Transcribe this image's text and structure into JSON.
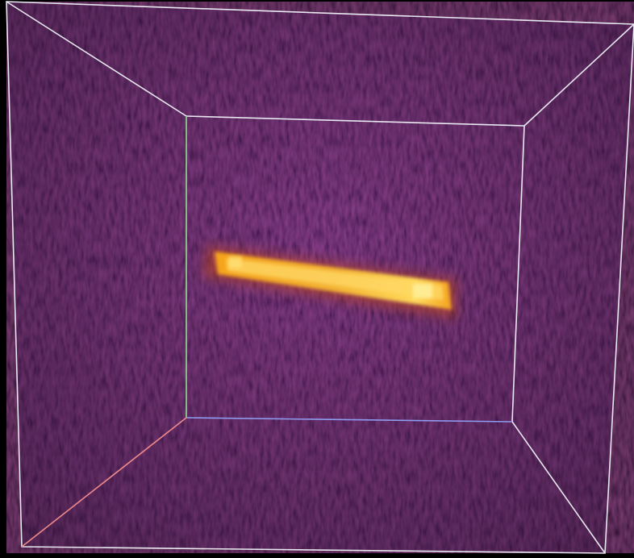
{
  "viewer": {
    "background_color": "#000000",
    "volume_base_color": "#2a0c3a",
    "colormap": "inferno",
    "colors": {
      "box_edge": "#e8e8f0",
      "x_axis": "#f08a8a",
      "y_axis": "#8ae08a",
      "z_axis": "#8f9bf0",
      "object_core": "#fff2a0",
      "object_mid": "#f8a21c",
      "object_edge": "#c24a1a"
    },
    "bounding_box_visible": true,
    "axes_visible": true,
    "rendered_object": "elongated-bright-rod"
  }
}
